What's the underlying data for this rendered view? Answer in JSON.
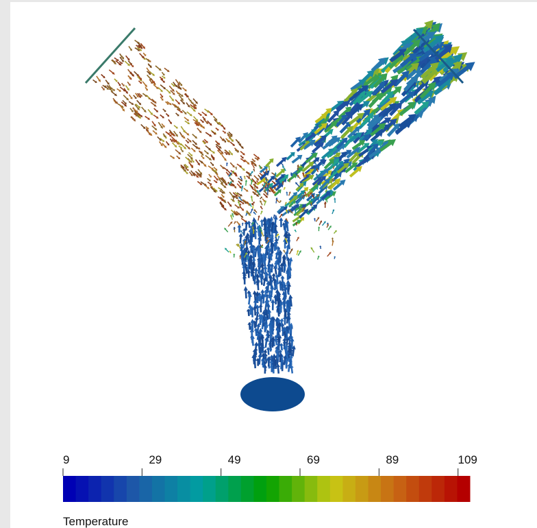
{
  "colorbar": {
    "title": "Temperature",
    "ticks": [
      9,
      29,
      49,
      69,
      89,
      109
    ],
    "range": [
      9,
      112
    ],
    "bands": 32,
    "colors": [
      "#0000b4",
      "#1e5aa8",
      "#00a0a0",
      "#00a000",
      "#c8c814",
      "#c86414",
      "#b40000"
    ]
  }
}
